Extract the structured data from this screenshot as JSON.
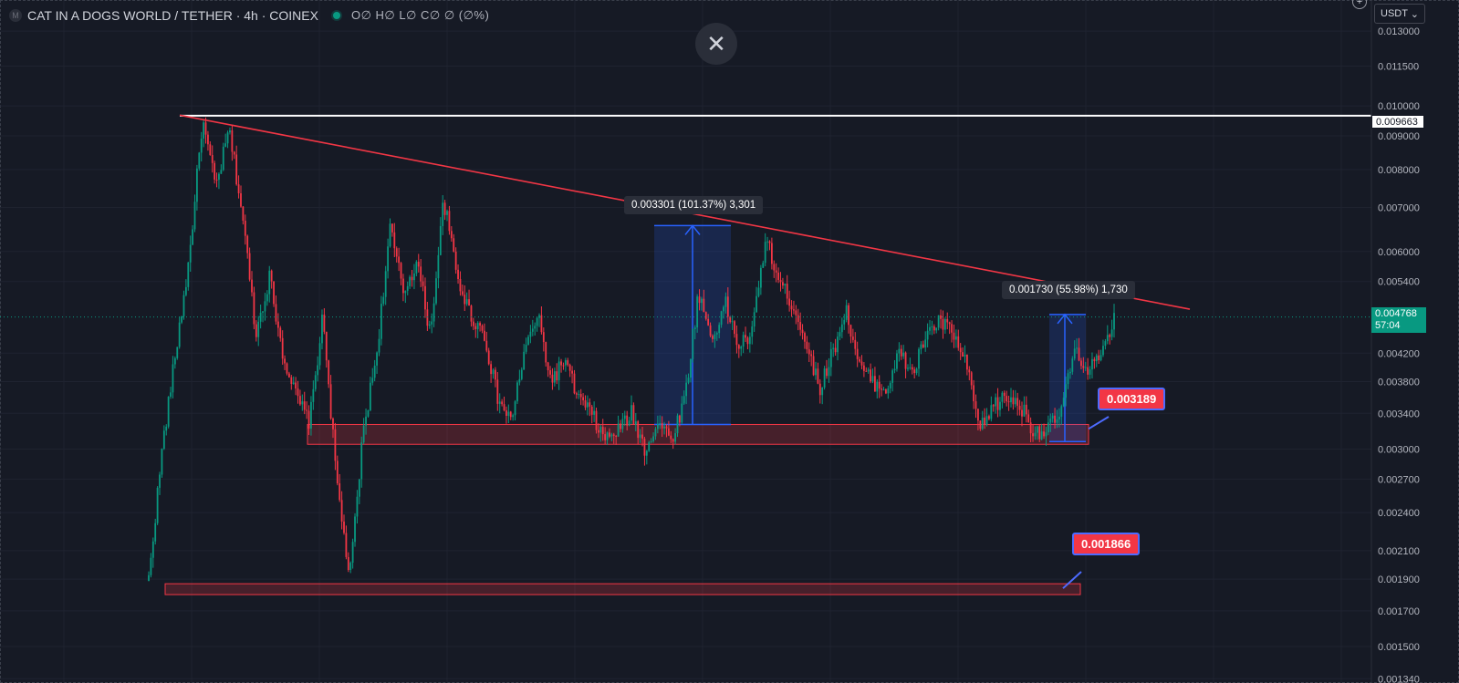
{
  "header": {
    "symbol_icon": "M",
    "title": "CAT IN A DOGS WORLD / TETHER · 4h · COINEX",
    "ohlc": "O∅ H∅ L∅ C∅ ∅ (∅%)"
  },
  "toolbar": {
    "close_icon": "✕",
    "currency": "USDT",
    "currency_caret": "⌄",
    "add_icon": "+"
  },
  "colors": {
    "background": "#161a25",
    "up": "#089981",
    "down": "#f23645",
    "trendline": "#f23645",
    "measure": "#2962ff"
  },
  "price_axis": {
    "ticks": [
      "0.013000",
      "0.011500",
      "0.010000",
      "0.009000",
      "0.008000",
      "0.007000",
      "0.006000",
      "0.005400",
      "0.004200",
      "0.003800",
      "0.003400",
      "0.003000",
      "0.002700",
      "0.002400",
      "0.002100",
      "0.001900",
      "0.001700",
      "0.001500",
      "0.001340"
    ]
  },
  "price_tags": {
    "horizontal_line": "0.009663",
    "last_price": "0.004768",
    "countdown": "57:04"
  },
  "measurements": [
    {
      "text": "0.003301 (101.37%) 3,301"
    },
    {
      "text": "0.001730 (55.98%) 1,730"
    }
  ],
  "labels": [
    {
      "text": "0.003189"
    },
    {
      "text": "0.001866"
    }
  ],
  "chart_data": {
    "type": "candlestick",
    "scale": "log",
    "ylim": [
      0.00132,
      0.0145
    ],
    "last_price": 0.004768,
    "horizontal_line": 0.009663,
    "trendline": [
      {
        "bar": 0.2,
        "price": 0.00968
      },
      {
        "bar": 1.0,
        "price": 0.0049
      }
    ],
    "support_zones": [
      [
        0.00305,
        0.00327
      ],
      [
        0.0018,
        0.00187
      ]
    ],
    "anchor_prices": [
      0.0019,
      0.003,
      0.0042,
      0.0058,
      0.0095,
      0.0075,
      0.0092,
      0.0068,
      0.0045,
      0.0055,
      0.0042,
      0.0036,
      0.0033,
      0.0048,
      0.0027,
      0.0019,
      0.0032,
      0.0042,
      0.0065,
      0.0052,
      0.0058,
      0.0045,
      0.0072,
      0.0055,
      0.0048,
      0.0045,
      0.0036,
      0.0033,
      0.0042,
      0.0048,
      0.0038,
      0.0041,
      0.0036,
      0.0034,
      0.0031,
      0.0032,
      0.0034,
      0.003,
      0.0033,
      0.0031,
      0.0036,
      0.0052,
      0.0044,
      0.005,
      0.0043,
      0.0045,
      0.0063,
      0.0054,
      0.005,
      0.0044,
      0.0037,
      0.0042,
      0.0049,
      0.004,
      0.0038,
      0.0037,
      0.0042,
      0.0039,
      0.0045,
      0.0047,
      0.0045,
      0.004,
      0.0032,
      0.0035,
      0.0036,
      0.0035,
      0.0032,
      0.0032,
      0.0034,
      0.0042,
      0.004,
      0.0041,
      0.0047
    ]
  }
}
